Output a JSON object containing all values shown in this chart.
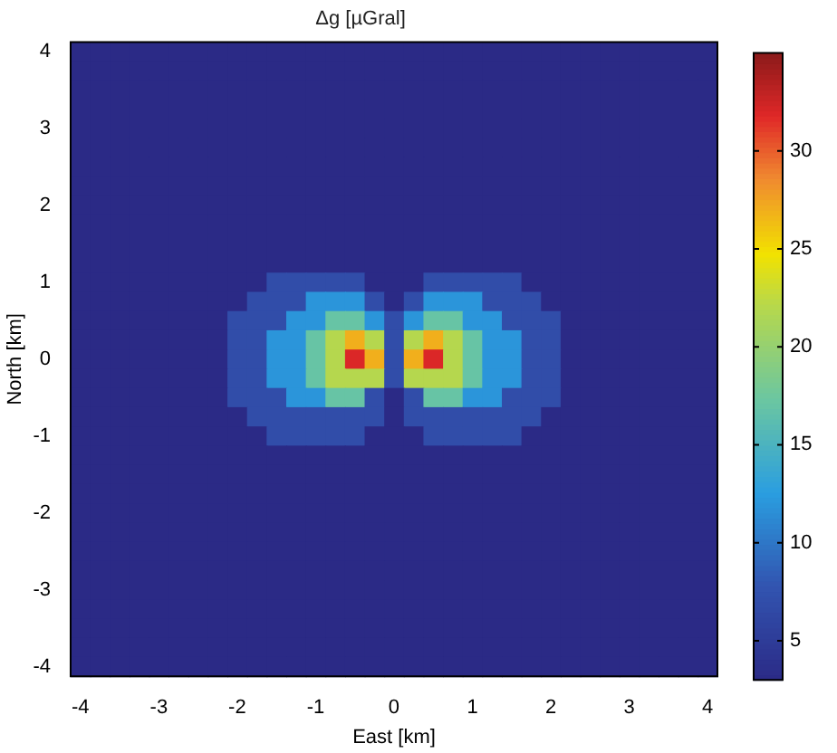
{
  "chart_data": {
    "type": "heatmap",
    "title": "Δg [µGral]",
    "xlabel": "East [km]",
    "ylabel": "North [km]",
    "categories": [
      "-4",
      null,
      null,
      null,
      "-3",
      null,
      null,
      null,
      "-2",
      null,
      null,
      null,
      "-1",
      null,
      null,
      null,
      "0",
      null,
      null,
      null,
      "1",
      null,
      null,
      null,
      "2",
      null,
      null,
      null,
      "3",
      null,
      null,
      null,
      "4"
    ],
    "y_categories": [
      "4",
      null,
      null,
      null,
      "3",
      null,
      null,
      null,
      "2",
      null,
      null,
      null,
      "1",
      null,
      null,
      null,
      "0",
      null,
      null,
      null,
      "-1",
      null,
      null,
      null,
      "-2",
      null,
      null,
      null,
      "-3",
      null,
      null,
      null,
      "-4"
    ],
    "clim": [
      3,
      35
    ],
    "cticks": [
      5,
      10,
      15,
      20,
      25,
      30
    ],
    "cells": [
      [
        3,
        3,
        3,
        3,
        3,
        3,
        3,
        3,
        3,
        3,
        3,
        3,
        3,
        3,
        3,
        3,
        3,
        3,
        3,
        3,
        3,
        3,
        3,
        3,
        3,
        3,
        3,
        3,
        3,
        3,
        3,
        3,
        3
      ],
      [
        3,
        3,
        3,
        3,
        3,
        3,
        3,
        3,
        3,
        3,
        3,
        3,
        3,
        3,
        3,
        3,
        3,
        3,
        3,
        3,
        3,
        3,
        3,
        3,
        3,
        3,
        3,
        3,
        3,
        3,
        3,
        3,
        3
      ],
      [
        3,
        3,
        3,
        3,
        3,
        3,
        3,
        3,
        3,
        3,
        3,
        3,
        3,
        3,
        3,
        3,
        3,
        3,
        3,
        3,
        3,
        3,
        3,
        3,
        3,
        3,
        3,
        3,
        3,
        3,
        3,
        3,
        3
      ],
      [
        3,
        3,
        3,
        3,
        3,
        3,
        3,
        3,
        3,
        3,
        3,
        3,
        3,
        3,
        3,
        3,
        3,
        3,
        3,
        3,
        3,
        3,
        3,
        3,
        3,
        3,
        3,
        3,
        3,
        3,
        3,
        3,
        3
      ],
      [
        3,
        3,
        3,
        3,
        3,
        3,
        3,
        3,
        3,
        3,
        3,
        3,
        3,
        3,
        3,
        3,
        3,
        3,
        3,
        3,
        3,
        3,
        3,
        3,
        3,
        3,
        3,
        3,
        3,
        3,
        3,
        3,
        3
      ],
      [
        3,
        3,
        3,
        3,
        3,
        3,
        3,
        3,
        3,
        3,
        3,
        3,
        3,
        3,
        3,
        3,
        3,
        3,
        3,
        3,
        3,
        3,
        3,
        3,
        3,
        3,
        3,
        3,
        3,
        3,
        3,
        3,
        3
      ],
      [
        3,
        3,
        3,
        3,
        3,
        3,
        3,
        3,
        3,
        3,
        3,
        3,
        3,
        3,
        3,
        3,
        3,
        3,
        3,
        3,
        3,
        3,
        3,
        3,
        3,
        3,
        3,
        3,
        3,
        3,
        3,
        3,
        3
      ],
      [
        3,
        3,
        3,
        3,
        3,
        3,
        3,
        3,
        3,
        3,
        3,
        3,
        3,
        3,
        3,
        3,
        3,
        3,
        3,
        3,
        3,
        3,
        3,
        3,
        3,
        3,
        3,
        3,
        3,
        3,
        3,
        3,
        3
      ],
      [
        3,
        3,
        3,
        3,
        3,
        3,
        3,
        3,
        3,
        3,
        3,
        3,
        3,
        3,
        3,
        3,
        3,
        3,
        3,
        3,
        3,
        3,
        3,
        3,
        3,
        3,
        3,
        3,
        3,
        3,
        3,
        3,
        3
      ],
      [
        3,
        3,
        3,
        3,
        3,
        3,
        3,
        3,
        3,
        3,
        3,
        3,
        3,
        3,
        3,
        3,
        3,
        3,
        3,
        3,
        3,
        3,
        3,
        3,
        3,
        3,
        3,
        3,
        3,
        3,
        3,
        3,
        3
      ],
      [
        3,
        3,
        3,
        3,
        3,
        3,
        3,
        3,
        3,
        3,
        3,
        3,
        3,
        3,
        3,
        3,
        3,
        3,
        3,
        3,
        3,
        3,
        3,
        3,
        3,
        3,
        3,
        3,
        3,
        3,
        3,
        3,
        3
      ],
      [
        3,
        3,
        3,
        3,
        3,
        3,
        3,
        3,
        3,
        3,
        3,
        3,
        3,
        3,
        3,
        3,
        3,
        3,
        3,
        3,
        3,
        3,
        3,
        3,
        3,
        3,
        3,
        3,
        3,
        3,
        3,
        3,
        3
      ],
      [
        3,
        3,
        3,
        3,
        3,
        3,
        3,
        3,
        3,
        3,
        7,
        7,
        7,
        7,
        7,
        3,
        3,
        3,
        7,
        7,
        7,
        7,
        7,
        3,
        3,
        3,
        3,
        3,
        3,
        3,
        3,
        3,
        3
      ],
      [
        3,
        3,
        3,
        3,
        3,
        3,
        3,
        3,
        3,
        7,
        7,
        7,
        12,
        12,
        12,
        7,
        3,
        7,
        12,
        12,
        12,
        7,
        7,
        7,
        3,
        3,
        3,
        3,
        3,
        3,
        3,
        3,
        3
      ],
      [
        3,
        3,
        3,
        3,
        3,
        3,
        3,
        3,
        7,
        7,
        7,
        12,
        12,
        17,
        17,
        12,
        7,
        12,
        17,
        17,
        12,
        12,
        7,
        7,
        7,
        3,
        3,
        3,
        3,
        3,
        3,
        3,
        3
      ],
      [
        3,
        3,
        3,
        3,
        3,
        3,
        3,
        3,
        7,
        7,
        12,
        12,
        17,
        22,
        27,
        22,
        7,
        22,
        27,
        22,
        17,
        12,
        12,
        7,
        7,
        3,
        3,
        3,
        3,
        3,
        3,
        3,
        3
      ],
      [
        3,
        3,
        3,
        3,
        3,
        3,
        3,
        3,
        7,
        7,
        12,
        12,
        17,
        22,
        32,
        27,
        7,
        27,
        32,
        22,
        17,
        12,
        12,
        7,
        7,
        3,
        3,
        3,
        3,
        3,
        3,
        3,
        3
      ],
      [
        3,
        3,
        3,
        3,
        3,
        3,
        3,
        3,
        7,
        7,
        12,
        12,
        17,
        22,
        22,
        22,
        7,
        22,
        22,
        22,
        17,
        12,
        12,
        7,
        7,
        3,
        3,
        3,
        3,
        3,
        3,
        3,
        3
      ],
      [
        3,
        3,
        3,
        3,
        3,
        3,
        3,
        3,
        7,
        7,
        7,
        12,
        12,
        17,
        17,
        7,
        3,
        7,
        17,
        17,
        12,
        12,
        7,
        7,
        7,
        3,
        3,
        3,
        3,
        3,
        3,
        3,
        3
      ],
      [
        3,
        3,
        3,
        3,
        3,
        3,
        3,
        3,
        3,
        7,
        7,
        7,
        7,
        7,
        7,
        7,
        3,
        7,
        7,
        7,
        7,
        7,
        7,
        7,
        3,
        3,
        3,
        3,
        3,
        3,
        3,
        3,
        3
      ],
      [
        3,
        3,
        3,
        3,
        3,
        3,
        3,
        3,
        3,
        3,
        7,
        7,
        7,
        7,
        7,
        3,
        3,
        3,
        7,
        7,
        7,
        7,
        7,
        3,
        3,
        3,
        3,
        3,
        3,
        3,
        3,
        3,
        3
      ],
      [
        3,
        3,
        3,
        3,
        3,
        3,
        3,
        3,
        3,
        3,
        3,
        3,
        3,
        3,
        3,
        3,
        3,
        3,
        3,
        3,
        3,
        3,
        3,
        3,
        3,
        3,
        3,
        3,
        3,
        3,
        3,
        3,
        3
      ],
      [
        3,
        3,
        3,
        3,
        3,
        3,
        3,
        3,
        3,
        3,
        3,
        3,
        3,
        3,
        3,
        3,
        3,
        3,
        3,
        3,
        3,
        3,
        3,
        3,
        3,
        3,
        3,
        3,
        3,
        3,
        3,
        3,
        3
      ],
      [
        3,
        3,
        3,
        3,
        3,
        3,
        3,
        3,
        3,
        3,
        3,
        3,
        3,
        3,
        3,
        3,
        3,
        3,
        3,
        3,
        3,
        3,
        3,
        3,
        3,
        3,
        3,
        3,
        3,
        3,
        3,
        3,
        3
      ],
      [
        3,
        3,
        3,
        3,
        3,
        3,
        3,
        3,
        3,
        3,
        3,
        3,
        3,
        3,
        3,
        3,
        3,
        3,
        3,
        3,
        3,
        3,
        3,
        3,
        3,
        3,
        3,
        3,
        3,
        3,
        3,
        3,
        3
      ],
      [
        3,
        3,
        3,
        3,
        3,
        3,
        3,
        3,
        3,
        3,
        3,
        3,
        3,
        3,
        3,
        3,
        3,
        3,
        3,
        3,
        3,
        3,
        3,
        3,
        3,
        3,
        3,
        3,
        3,
        3,
        3,
        3,
        3
      ],
      [
        3,
        3,
        3,
        3,
        3,
        3,
        3,
        3,
        3,
        3,
        3,
        3,
        3,
        3,
        3,
        3,
        3,
        3,
        3,
        3,
        3,
        3,
        3,
        3,
        3,
        3,
        3,
        3,
        3,
        3,
        3,
        3,
        3
      ],
      [
        3,
        3,
        3,
        3,
        3,
        3,
        3,
        3,
        3,
        3,
        3,
        3,
        3,
        3,
        3,
        3,
        3,
        3,
        3,
        3,
        3,
        3,
        3,
        3,
        3,
        3,
        3,
        3,
        3,
        3,
        3,
        3,
        3
      ],
      [
        3,
        3,
        3,
        3,
        3,
        3,
        3,
        3,
        3,
        3,
        3,
        3,
        3,
        3,
        3,
        3,
        3,
        3,
        3,
        3,
        3,
        3,
        3,
        3,
        3,
        3,
        3,
        3,
        3,
        3,
        3,
        3,
        3
      ],
      [
        3,
        3,
        3,
        3,
        3,
        3,
        3,
        3,
        3,
        3,
        3,
        3,
        3,
        3,
        3,
        3,
        3,
        3,
        3,
        3,
        3,
        3,
        3,
        3,
        3,
        3,
        3,
        3,
        3,
        3,
        3,
        3,
        3
      ],
      [
        3,
        3,
        3,
        3,
        3,
        3,
        3,
        3,
        3,
        3,
        3,
        3,
        3,
        3,
        3,
        3,
        3,
        3,
        3,
        3,
        3,
        3,
        3,
        3,
        3,
        3,
        3,
        3,
        3,
        3,
        3,
        3,
        3
      ],
      [
        3,
        3,
        3,
        3,
        3,
        3,
        3,
        3,
        3,
        3,
        3,
        3,
        3,
        3,
        3,
        3,
        3,
        3,
        3,
        3,
        3,
        3,
        3,
        3,
        3,
        3,
        3,
        3,
        3,
        3,
        3,
        3,
        3
      ],
      [
        3,
        3,
        3,
        3,
        3,
        3,
        3,
        3,
        3,
        3,
        3,
        3,
        3,
        3,
        3,
        3,
        3,
        3,
        3,
        3,
        3,
        3,
        3,
        3,
        3,
        3,
        3,
        3,
        3,
        3,
        3,
        3,
        3
      ]
    ]
  }
}
